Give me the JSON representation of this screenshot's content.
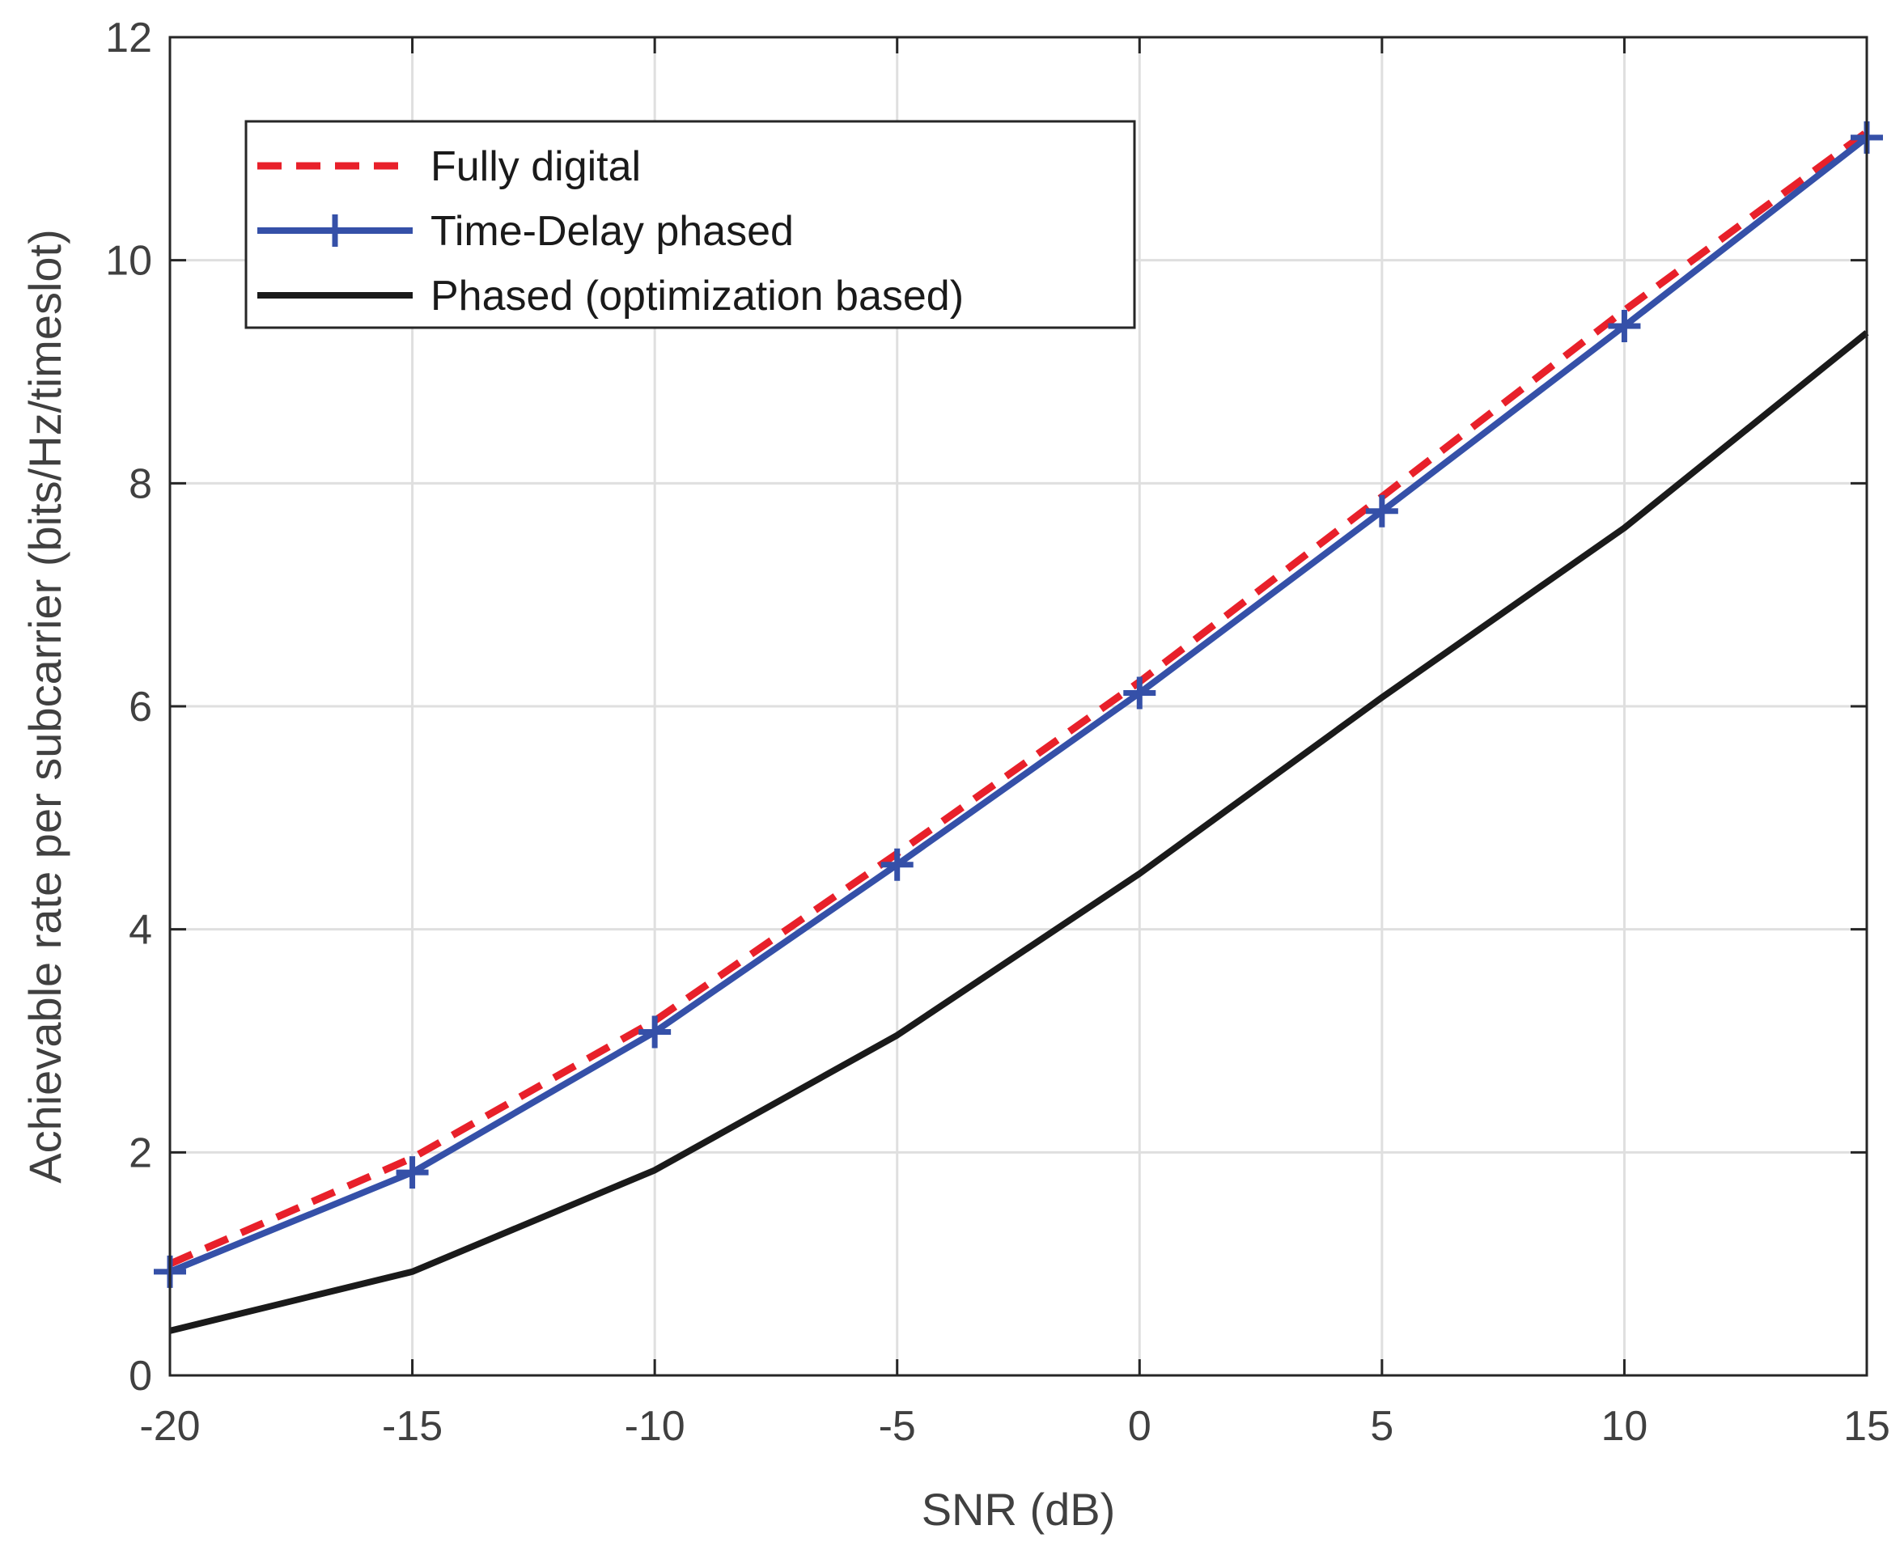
{
  "chart_data": {
    "type": "line",
    "title": "",
    "xlabel": "SNR (dB)",
    "ylabel": "Achievable rate per subcarrier (bits/Hz/timeslot)",
    "xlim": [
      -20,
      15
    ],
    "ylim": [
      0,
      12
    ],
    "xticks": [
      -20,
      -15,
      -10,
      -5,
      0,
      5,
      10,
      15
    ],
    "yticks": [
      0,
      2,
      4,
      6,
      8,
      10,
      12
    ],
    "grid": true,
    "legend_position": "top-left",
    "x": [
      -20,
      -15,
      -10,
      -5,
      0,
      5,
      10,
      15
    ],
    "series": [
      {
        "name": "Fully digital",
        "values": [
          1.0,
          1.95,
          3.18,
          4.68,
          6.22,
          7.88,
          9.55,
          11.15
        ],
        "color": "#e8202a",
        "style": "dashed",
        "marker": "none"
      },
      {
        "name": "Time-Delay phased",
        "values": [
          0.93,
          1.82,
          3.08,
          4.58,
          6.12,
          7.75,
          9.41,
          11.1
        ],
        "color": "#3550a8",
        "style": "solid",
        "marker": "plus"
      },
      {
        "name": "Phased (optimization based)",
        "values": [
          0.4,
          0.93,
          1.84,
          3.05,
          4.5,
          6.08,
          7.6,
          9.35
        ],
        "color": "#1a1a1a",
        "style": "solid",
        "marker": "none"
      }
    ]
  }
}
